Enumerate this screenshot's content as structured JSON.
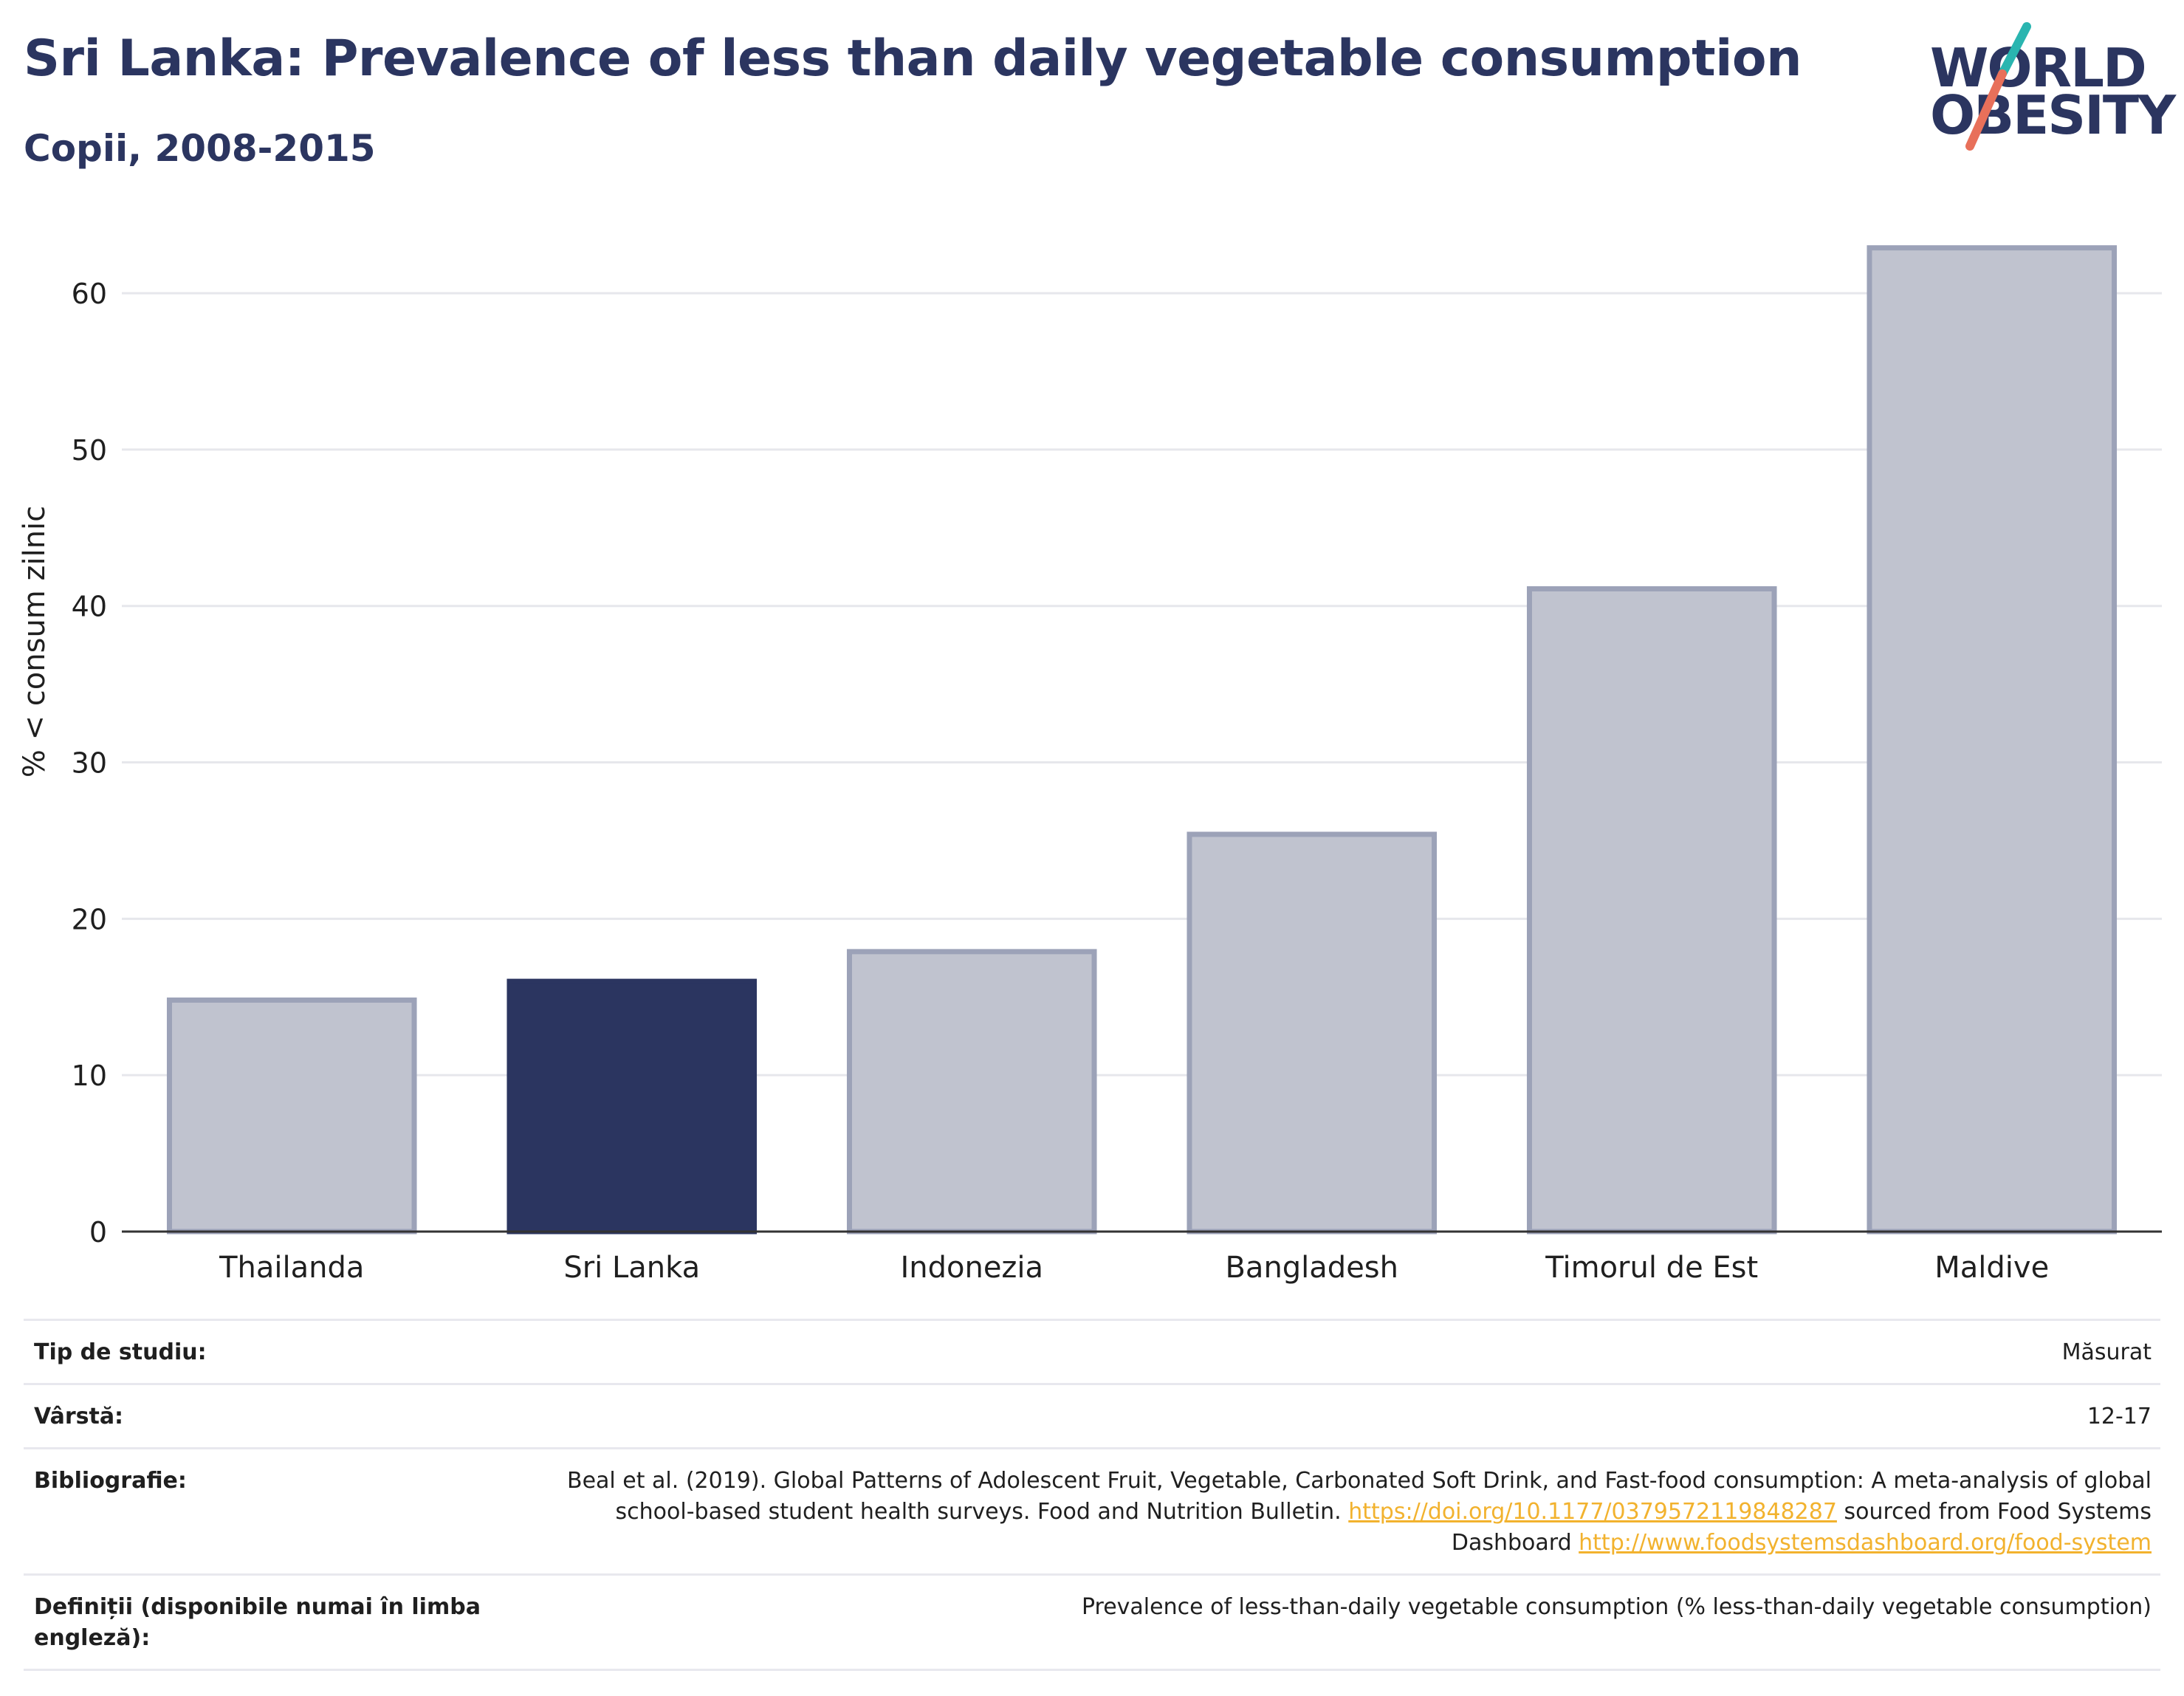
{
  "title": "Sri Lanka: Prevalence of less than daily vegetable consumption",
  "subtitle": "Copii, 2008-2015",
  "logo": {
    "line1": "WORLD",
    "line2": "OBESITY",
    "colors": {
      "text": "#2b3560",
      "slash_top": "#2ab5b0",
      "slash_bottom": "#e8705a"
    }
  },
  "chart_data": {
    "type": "bar",
    "categories": [
      "Thailanda",
      "Sri Lanka",
      "Indonezia",
      "Bangladesh",
      "Timorul de Est",
      "Maldive"
    ],
    "values": [
      14.8,
      16.0,
      17.9,
      25.4,
      41.1,
      62.9
    ],
    "highlight": "Sri Lanka",
    "ylabel": "% < consum zilnic",
    "xlabel": "",
    "ylim": [
      0,
      66
    ],
    "yticks": [
      0,
      10,
      20,
      30,
      40,
      50,
      60
    ],
    "grid": true,
    "colors": {
      "bar": "#c0c3cf",
      "bar_border": "#9ca2b8",
      "highlight": "#2b3560",
      "grid": "#e6e7ec",
      "axis": "#333333"
    }
  },
  "info": {
    "study_type_label": "Tip de studiu:",
    "study_type_value": "Măsurat",
    "age_label": "Vârstă:",
    "age_value": "12-17",
    "bibliography_label": "Bibliografie:",
    "bibliography_text1": "Beal et al. (2019). Global Patterns of Adolescent Fruit, Vegetable, Carbonated Soft Drink, and Fast-food consumption: A meta-analysis of global school-based student health surveys. Food and Nutrition Bulletin. ",
    "bibliography_link1": "https://doi.org/10.1177/0379572119848287",
    "bibliography_text2": " sourced from Food Systems Dashboard ",
    "bibliography_link2": "http://www.foodsystemsdashboard.org/food-system",
    "definitions_label": "Definiții (disponibile numai în limba engleză):",
    "definitions_value": "Prevalence of less-than-daily vegetable consumption (% less-than-daily vegetable consumption)"
  }
}
